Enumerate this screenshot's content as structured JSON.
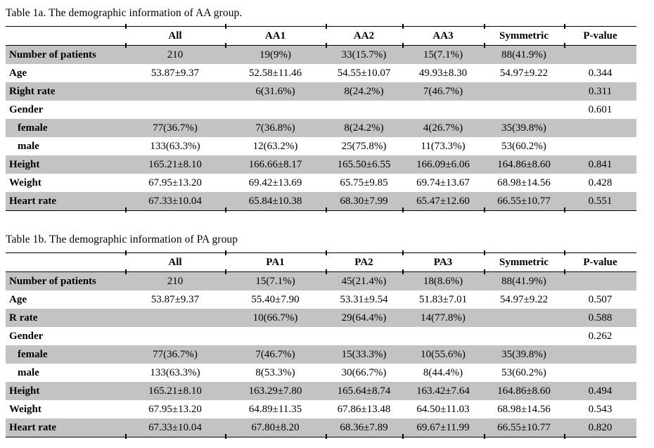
{
  "colors": {
    "background": "#ffffff",
    "row_shading": "#c3c3c3",
    "border": "#000000",
    "text": "#000000"
  },
  "tables": [
    {
      "caption": "Table 1a. The demographic information of AA group.",
      "columns": [
        "",
        "All",
        "AA1",
        "AA2",
        "AA3",
        "Symmetric",
        "P-value"
      ],
      "rows": [
        {
          "label": "Number of patients",
          "values": [
            "210",
            "19(9%)",
            "33(15.7%)",
            "15(7.1%)",
            "88(41.9%)",
            ""
          ]
        },
        {
          "label": "Age",
          "values": [
            "53.87±9.37",
            "52.58±11.46",
            "54.55±10.07",
            "49.93±8.30",
            "54.97±9.22",
            "0.344"
          ]
        },
        {
          "label": "Right rate",
          "values": [
            "",
            "6(31.6%)",
            "8(24.2%)",
            "7(46.7%)",
            "",
            "0.311"
          ]
        },
        {
          "label": "Gender",
          "values": [
            "",
            "",
            "",
            "",
            "",
            "0.601"
          ]
        },
        {
          "label": "female",
          "values": [
            "77(36.7%)",
            "7(36.8%)",
            "8(24.2%)",
            "4(26.7%)",
            "35(39.8%)",
            ""
          ]
        },
        {
          "label": "male",
          "values": [
            "133(63.3%)",
            "12(63.2%)",
            "25(75.8%)",
            "11(73.3%)",
            "53(60.2%)",
            ""
          ]
        },
        {
          "label": "Height",
          "values": [
            "165.21±8.10",
            "166.66±8.17",
            "165.50±6.55",
            "166.09±6.06",
            "164.86±8.60",
            "0.841"
          ]
        },
        {
          "label": "Weight",
          "values": [
            "67.95±13.20",
            "69.42±13.69",
            "65.75±9.85",
            "69.74±13.67",
            "68.98±14.56",
            "0.428"
          ]
        },
        {
          "label": "Heart rate",
          "values": [
            "67.33±10.04",
            "65.84±10.38",
            "68.30±7.99",
            "65.47±12.60",
            "66.55±10.77",
            "0.551"
          ]
        }
      ]
    },
    {
      "caption": "Table 1b. The demographic information of PA group",
      "columns": [
        "",
        "All",
        "PA1",
        "PA2",
        "PA3",
        "Symmetric",
        "P-value"
      ],
      "rows": [
        {
          "label": "Number of patients",
          "values": [
            "210",
            "15(7.1%)",
            "45(21.4%)",
            "18(8.6%)",
            "88(41.9%)",
            ""
          ]
        },
        {
          "label": "Age",
          "values": [
            "53.87±9.37",
            "55.40±7.90",
            "53.31±9.54",
            "51.83±7.01",
            "54.97±9.22",
            "0.507"
          ]
        },
        {
          "label": "R rate",
          "values": [
            "",
            "10(66.7%)",
            "29(64.4%)",
            "14(77.8%)",
            "",
            "0.588"
          ]
        },
        {
          "label": "Gender",
          "values": [
            "",
            "",
            "",
            "",
            "",
            "0.262"
          ]
        },
        {
          "label": "female",
          "values": [
            "77(36.7%)",
            "7(46.7%)",
            "15(33.3%)",
            "10(55.6%)",
            "35(39.8%)",
            ""
          ]
        },
        {
          "label": "male",
          "values": [
            "133(63.3%)",
            "8(53.3%)",
            "30(66.7%)",
            "8(44.4%)",
            "53(60.2%)",
            ""
          ]
        },
        {
          "label": "Height",
          "values": [
            "165.21±8.10",
            "163.29±7.80",
            "165.64±8.74",
            "163.42±7.64",
            "164.86±8.60",
            "0.494"
          ]
        },
        {
          "label": "Weight",
          "values": [
            "67.95±13.20",
            "64.89±11.35",
            "67.86±13.48",
            "64.50±11.03",
            "68.98±14.56",
            "0.543"
          ]
        },
        {
          "label": "Heart rate",
          "values": [
            "67.33±10.04",
            "67.80±8.20",
            "68.36±7.89",
            "69.67±11.99",
            "66.55±10.77",
            "0.820"
          ]
        }
      ]
    }
  ]
}
